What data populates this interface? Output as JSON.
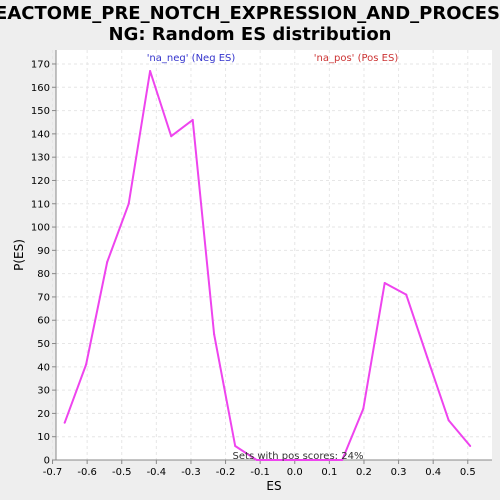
{
  "chart_data": {
    "type": "line",
    "title_line1": "REACTOME_PRE_NOTCH_EXPRESSION_AND_PROCESSI",
    "title_line2": "NG: Random ES distribution",
    "xlabel": "ES",
    "ylabel": "P(ES)",
    "xlim": [
      -0.69,
      0.57
    ],
    "ylim": [
      0,
      176
    ],
    "x_ticks": [
      -0.7,
      -0.6,
      -0.5,
      -0.4,
      -0.3,
      -0.2,
      -0.1,
      0.0,
      0.1,
      0.2,
      0.3,
      0.4,
      0.5
    ],
    "x_tick_labels": [
      "-0.7",
      "-0.6",
      "-0.5",
      "-0.4",
      "-0.3",
      "-0.2",
      "-0.1",
      "0.0",
      "0.1",
      "0.2",
      "0.3",
      "0.4",
      "0.5"
    ],
    "y_ticks": [
      0,
      10,
      20,
      30,
      40,
      50,
      60,
      70,
      80,
      90,
      100,
      110,
      120,
      130,
      140,
      150,
      160,
      170
    ],
    "y_tick_labels": [
      "0",
      "10",
      "20",
      "30",
      "40",
      "50",
      "60",
      "70",
      "80",
      "90",
      "100",
      "110",
      "120",
      "130",
      "140",
      "150",
      "160",
      "170"
    ],
    "grid": true,
    "legend": [
      {
        "label": "'na_neg' (Neg ES)",
        "color": "#3333cc"
      },
      {
        "label": "'na_pos' (Pos ES)",
        "color": "#cc3333"
      }
    ],
    "annotation": "Sets with pos scores: 24%",
    "line_color": "#ee44ee",
    "series": [
      {
        "points": [
          {
            "x": -0.665,
            "y": 16
          },
          {
            "x": -0.603,
            "y": 41
          },
          {
            "x": -0.542,
            "y": 85
          },
          {
            "x": -0.48,
            "y": 110
          },
          {
            "x": -0.418,
            "y": 167
          },
          {
            "x": -0.357,
            "y": 139
          },
          {
            "x": -0.295,
            "y": 146
          },
          {
            "x": -0.233,
            "y": 54
          },
          {
            "x": -0.172,
            "y": 6
          },
          {
            "x": -0.11,
            "y": 0
          },
          {
            "x": 0.137,
            "y": 0
          },
          {
            "x": 0.198,
            "y": 22
          },
          {
            "x": 0.26,
            "y": 76
          },
          {
            "x": 0.322,
            "y": 71
          },
          {
            "x": 0.383,
            "y": 44
          },
          {
            "x": 0.445,
            "y": 17
          },
          {
            "x": 0.507,
            "y": 6
          }
        ]
      }
    ]
  }
}
